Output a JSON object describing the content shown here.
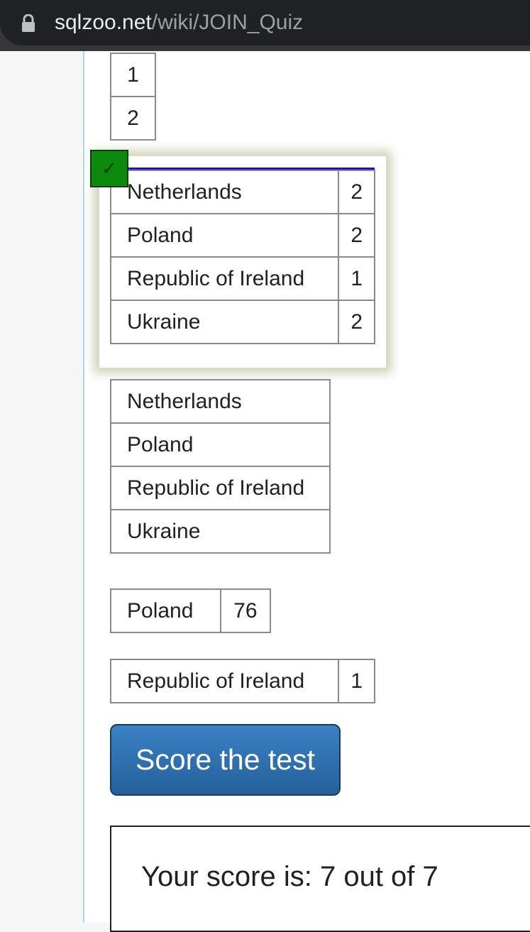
{
  "browser": {
    "url_domain": "sqlzoo.net",
    "url_path": "/wiki/JOIN_Quiz",
    "lock_icon": "lock-icon"
  },
  "answers": {
    "option_numbers": {
      "rows": [
        [
          "1"
        ],
        [
          "2"
        ]
      ]
    },
    "option_selected": {
      "checked": true,
      "check_mark": "✓",
      "check_color": "#0b8a0b",
      "rows": [
        [
          "Netherlands",
          "2"
        ],
        [
          "Poland",
          "2"
        ],
        [
          "Republic of Ireland",
          "1"
        ],
        [
          "Ukraine",
          "2"
        ]
      ]
    },
    "option_countries": {
      "rows": [
        [
          "Netherlands"
        ],
        [
          "Poland"
        ],
        [
          "Republic of Ireland"
        ],
        [
          "Ukraine"
        ]
      ]
    },
    "option_poland": {
      "rows": [
        [
          "Poland",
          "76"
        ]
      ]
    },
    "option_ireland": {
      "rows": [
        [
          "Republic of Ireland",
          "1"
        ]
      ]
    }
  },
  "score_button_label": "Score the test",
  "score_result": "Your score is: 7 out of 7",
  "colors": {
    "button": "#2f73b0",
    "content_border": "#a7d7f9"
  }
}
